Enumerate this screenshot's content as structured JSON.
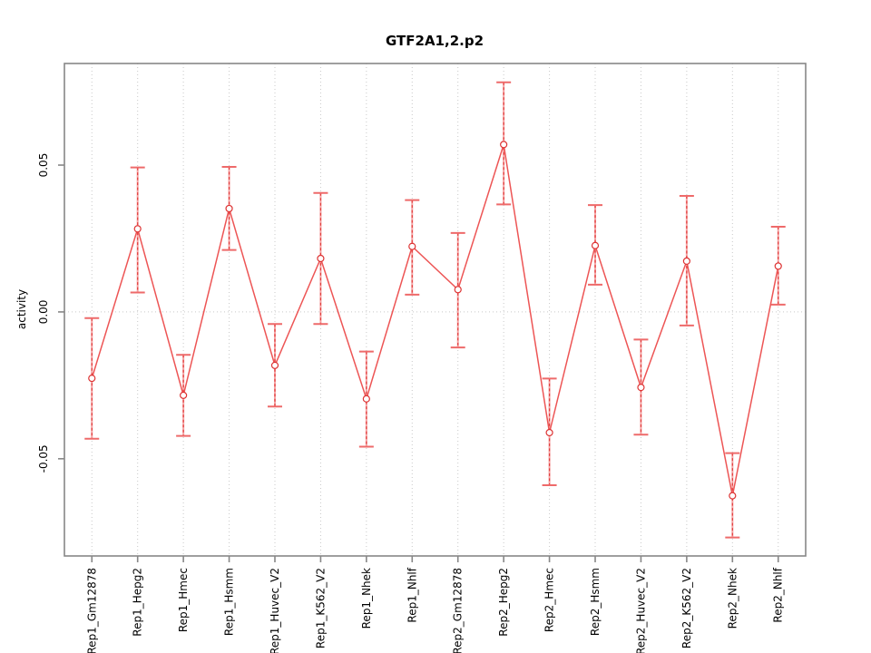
{
  "chart_data": {
    "type": "line",
    "title": "GTF2A1,2.p2",
    "xlabel": "",
    "ylabel": "activity",
    "categories": [
      "Rep1_Gm12878",
      "Rep1_Hepg2",
      "Rep1_Hmec",
      "Rep1_Hsmm",
      "Rep1_Huvec_V2",
      "Rep1_K562_V2",
      "Rep1_Nhek",
      "Rep1_Nhlf",
      "Rep2_Gm12878",
      "Rep2_Hepg2",
      "Rep2_Hmec",
      "Rep2_Hsmm",
      "Rep2_Huvec_V2",
      "Rep2_K562_V2",
      "Rep2_Nhek",
      "Rep2_Nhlf"
    ],
    "series": [
      {
        "name": "activity",
        "values": [
          -0.0226,
          0.0283,
          -0.0284,
          0.0352,
          -0.0182,
          0.0182,
          -0.0296,
          0.0223,
          0.0076,
          0.057,
          -0.0411,
          0.0226,
          -0.0257,
          0.0173,
          -0.0626,
          0.0156
        ],
        "error_high": [
          -0.0021,
          0.0492,
          -0.0146,
          0.0494,
          -0.0041,
          0.0405,
          -0.0135,
          0.0381,
          0.0269,
          0.0782,
          -0.0227,
          0.0364,
          -0.0094,
          0.0395,
          -0.0481,
          0.029
        ],
        "error_low": [
          -0.0432,
          0.0066,
          -0.0422,
          0.0211,
          -0.0322,
          -0.0041,
          -0.0459,
          0.0059,
          -0.0121,
          0.0366,
          -0.059,
          0.0093,
          -0.0418,
          -0.0046,
          -0.0768,
          0.0025
        ]
      }
    ],
    "yticks": [
      {
        "label": "-0.05",
        "value": -0.05
      },
      {
        "label": "0.00",
        "value": 0.0
      },
      {
        "label": "0.05",
        "value": 0.05
      }
    ],
    "ylim": [
      -0.0831,
      0.0846
    ],
    "grid": {
      "vertical_dotted_per_category": true,
      "horizontal_dotted_at_zero": true
    },
    "legend": "none",
    "marker": "open-circle",
    "colors": {
      "line": "#ed5555",
      "error_bar_solid": "#f5a5a5",
      "error_bar_dash": "#e23b3b",
      "error_cap": "#ee6a6a",
      "marker_stroke": "#dd3333",
      "frame": "#878787",
      "grid": "#c9c9c9",
      "zero_line": "#c9c9c9",
      "text": "#000000"
    }
  }
}
